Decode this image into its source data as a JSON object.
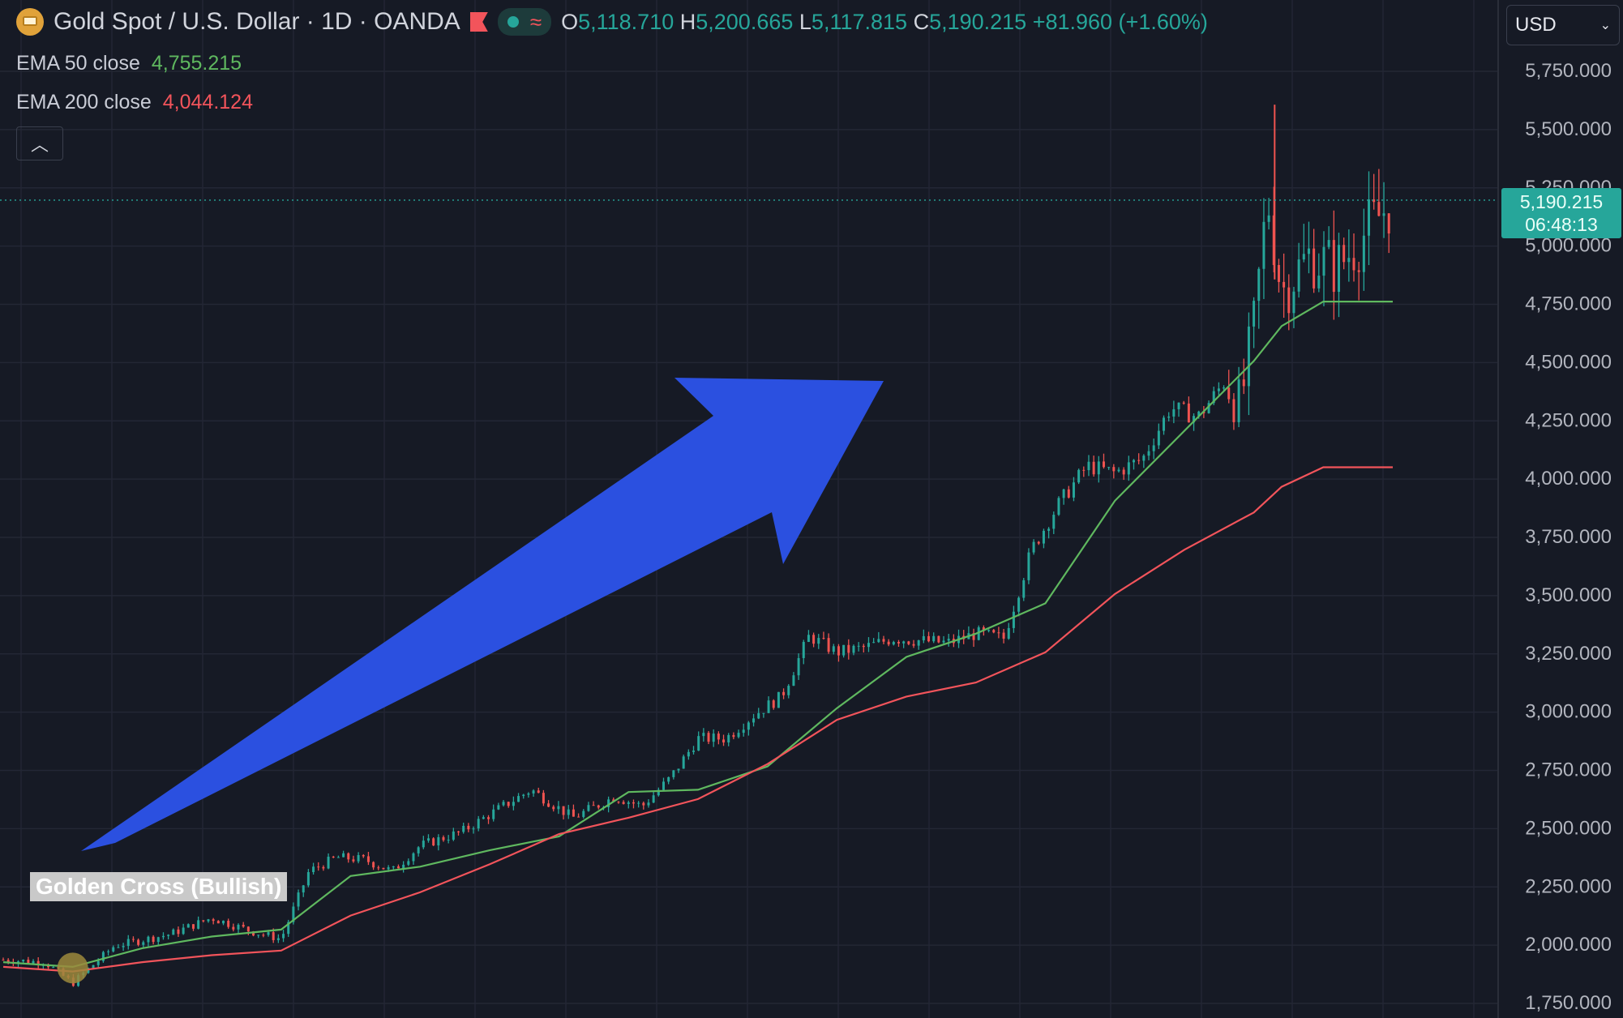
{
  "header": {
    "symbol_title": "Gold Spot / U.S. Dollar · 1D · OANDA",
    "ohlc": {
      "o_label": "O",
      "o": "5,118.710",
      "h_label": "H",
      "h": "5,200.665",
      "l_label": "L",
      "l": "5,117.815",
      "c_label": "C",
      "c": "5,190.215",
      "change": "+81.960 (+1.60%)"
    },
    "icons": [
      "gold-coin-icon",
      "flag-icon",
      "market-status-dot-icon",
      "wave-icon"
    ]
  },
  "indicators": {
    "ema50": {
      "label": "EMA 50 close",
      "value": "4,755.215",
      "color": "#5fb85f"
    },
    "ema200": {
      "label": "EMA 200 close",
      "value": "4,044.124",
      "color": "#f2545b"
    }
  },
  "currency": {
    "selected": "USD"
  },
  "last_price_tag": {
    "price": "5,190.215",
    "countdown": "06:48:13"
  },
  "annotation": {
    "label": "Golden Cross (Bullish)"
  },
  "colors": {
    "background": "#161a25",
    "grid": "#232735",
    "up": "#26a69a",
    "down": "#ef5350",
    "arrow": "#2b50e0",
    "cross_marker": "#9c8a3c"
  },
  "chart_data": {
    "type": "line",
    "title": "Gold Spot / U.S. Dollar · 1D · OANDA",
    "ylim": [
      1700,
      5850
    ],
    "y_ticks": [
      "5,750.000",
      "5,500.000",
      "5,250.000",
      "5,000.000",
      "4,750.000",
      "4,500.000",
      "4,250.000",
      "4,000.000",
      "3,750.000",
      "3,500.000",
      "3,250.000",
      "3,000.000",
      "2,750.000",
      "2,500.000",
      "2,250.000",
      "2,000.000",
      "1,750.000"
    ],
    "y_tick_values": [
      5750,
      5500,
      5250,
      5000,
      4750,
      4500,
      4250,
      4000,
      3750,
      3500,
      3250,
      3000,
      2750,
      2500,
      2250,
      2000,
      1750
    ],
    "x": [
      0,
      5,
      10,
      15,
      20,
      25,
      30,
      35,
      40,
      45,
      50,
      55,
      60,
      65,
      70,
      75,
      80,
      85,
      90,
      92,
      95,
      100
    ],
    "series": [
      {
        "name": "EMA 50 close",
        "values": [
          1920,
          1900,
          1980,
          2030,
          2060,
          2290,
          2330,
          2400,
          2460,
          2650,
          2660,
          2760,
          3010,
          3230,
          3330,
          3460,
          3900,
          4200,
          4500,
          4650,
          4755,
          4755
        ]
      },
      {
        "name": "EMA 200 close",
        "values": [
          1900,
          1880,
          1920,
          1950,
          1970,
          2120,
          2220,
          2340,
          2470,
          2540,
          2620,
          2770,
          2960,
          3060,
          3120,
          3250,
          3500,
          3690,
          3850,
          3960,
          4044,
          4044
        ]
      }
    ],
    "price_path": {
      "x": [
        0,
        3,
        5,
        8,
        12,
        15,
        18,
        20,
        22,
        24,
        26,
        28,
        30,
        33,
        36,
        38,
        41,
        44,
        46,
        48,
        50,
        52,
        54,
        56,
        58,
        60,
        62,
        64,
        66,
        68,
        70,
        72,
        74,
        76,
        78,
        80,
        82,
        84,
        86,
        88,
        89,
        90,
        91,
        92,
        94,
        96,
        98,
        100
      ],
      "close": [
        1930,
        1920,
        1830,
        1990,
        2040,
        2110,
        2050,
        2020,
        2310,
        2370,
        2360,
        2310,
        2420,
        2480,
        2590,
        2660,
        2540,
        2630,
        2590,
        2710,
        2880,
        2880,
        2980,
        3060,
        3320,
        3250,
        3270,
        3310,
        3300,
        3290,
        3330,
        3310,
        3690,
        3890,
        4050,
        4020,
        4080,
        4300,
        4260,
        4420,
        4300,
        4650,
        5200,
        4800,
        4950,
        4900,
        5050,
        5190
      ]
    },
    "last_price": 5190.215,
    "golden_cross_x": 5,
    "grid": true
  }
}
